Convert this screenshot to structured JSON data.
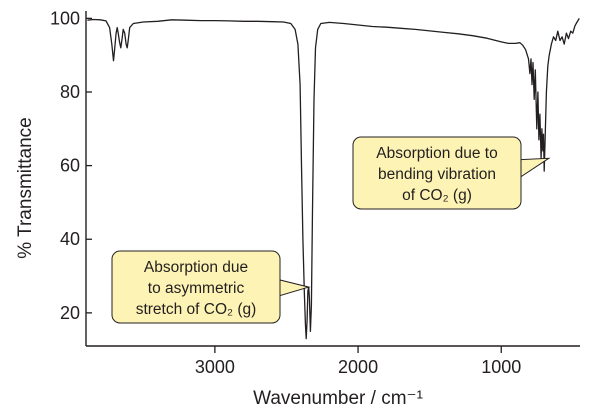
{
  "chart_data": {
    "type": "line",
    "title": "",
    "xlabel": "Wavenumber / cm⁻¹",
    "ylabel": "% Transmittance",
    "xlim": [
      3900,
      450
    ],
    "ylim": [
      11,
      102
    ],
    "x_reversed": true,
    "x_ticks": [
      3000,
      2000,
      1000
    ],
    "y_ticks": [
      20,
      40,
      60,
      80,
      100
    ],
    "grid": false,
    "series": [
      {
        "color": "#231f20",
        "points": [
          [
            3890,
            99.5
          ],
          [
            3850,
            99.7
          ],
          [
            3800,
            99.6
          ],
          [
            3760,
            99.3
          ],
          [
            3735,
            97.5
          ],
          [
            3720,
            93
          ],
          [
            3708,
            88.5
          ],
          [
            3700,
            91.5
          ],
          [
            3690,
            96
          ],
          [
            3682,
            97.5
          ],
          [
            3675,
            96
          ],
          [
            3665,
            93.5
          ],
          [
            3657,
            92
          ],
          [
            3648,
            94.5
          ],
          [
            3640,
            97
          ],
          [
            3630,
            96
          ],
          [
            3620,
            93
          ],
          [
            3612,
            92
          ],
          [
            3605,
            94
          ],
          [
            3595,
            97.5
          ],
          [
            3570,
            98.6
          ],
          [
            3500,
            99
          ],
          [
            3400,
            99.2
          ],
          [
            3300,
            99.6
          ],
          [
            3200,
            99.5
          ],
          [
            3100,
            99.4
          ],
          [
            3000,
            99.4
          ],
          [
            2900,
            99.3
          ],
          [
            2800,
            99.2
          ],
          [
            2700,
            99.2
          ],
          [
            2600,
            99.1
          ],
          [
            2520,
            99
          ],
          [
            2470,
            98.6
          ],
          [
            2440,
            97
          ],
          [
            2420,
            93
          ],
          [
            2405,
            82
          ],
          [
            2395,
            60
          ],
          [
            2385,
            40
          ],
          [
            2375,
            25
          ],
          [
            2368,
            17
          ],
          [
            2362,
            13
          ],
          [
            2356,
            18
          ],
          [
            2350,
            26
          ],
          [
            2345,
            27
          ],
          [
            2340,
            24
          ],
          [
            2333,
            15
          ],
          [
            2326,
            22
          ],
          [
            2318,
            48
          ],
          [
            2308,
            78
          ],
          [
            2297,
            92
          ],
          [
            2282,
            97
          ],
          [
            2260,
            98.6
          ],
          [
            2200,
            98.9
          ],
          [
            2100,
            98.6
          ],
          [
            2000,
            98.2
          ],
          [
            1900,
            97.8
          ],
          [
            1800,
            97.6
          ],
          [
            1700,
            97.3
          ],
          [
            1600,
            97
          ],
          [
            1500,
            96.6
          ],
          [
            1400,
            96.2
          ],
          [
            1300,
            95.8
          ],
          [
            1200,
            95.3
          ],
          [
            1100,
            94.6
          ],
          [
            1000,
            93.6
          ],
          [
            950,
            93.2
          ],
          [
            900,
            93.2
          ],
          [
            870,
            93.4
          ],
          [
            850,
            92.7
          ],
          [
            830,
            91.5
          ],
          [
            810,
            89
          ],
          [
            800,
            85
          ],
          [
            792,
            89
          ],
          [
            785,
            82
          ],
          [
            778,
            88
          ],
          [
            770,
            78
          ],
          [
            762,
            86
          ],
          [
            752,
            70
          ],
          [
            744,
            80
          ],
          [
            737,
            67
          ],
          [
            730,
            74
          ],
          [
            722,
            62
          ],
          [
            716,
            70
          ],
          [
            710,
            64
          ],
          [
            705,
            68.5
          ],
          [
            700,
            58.5
          ],
          [
            694,
            67
          ],
          [
            685,
            80
          ],
          [
            675,
            87
          ],
          [
            665,
            90
          ],
          [
            650,
            93
          ],
          [
            635,
            95
          ],
          [
            620,
            94
          ],
          [
            605,
            96.5
          ],
          [
            590,
            94
          ],
          [
            575,
            95
          ],
          [
            560,
            93
          ],
          [
            545,
            96
          ],
          [
            530,
            94.5
          ],
          [
            515,
            96.5
          ],
          [
            500,
            96
          ],
          [
            485,
            98
          ],
          [
            470,
            99
          ],
          [
            455,
            100
          ]
        ]
      }
    ],
    "annotations": [
      {
        "lines": [
          "Absorption due",
          "to asymmetric",
          "stretch of CO₂ (g)"
        ],
        "points_to": [
          2345,
          27
        ]
      },
      {
        "lines": [
          "Absorption due to",
          "bending vibration",
          "of CO₂ (g)"
        ],
        "points_to": [
          668,
          62
        ]
      }
    ]
  }
}
